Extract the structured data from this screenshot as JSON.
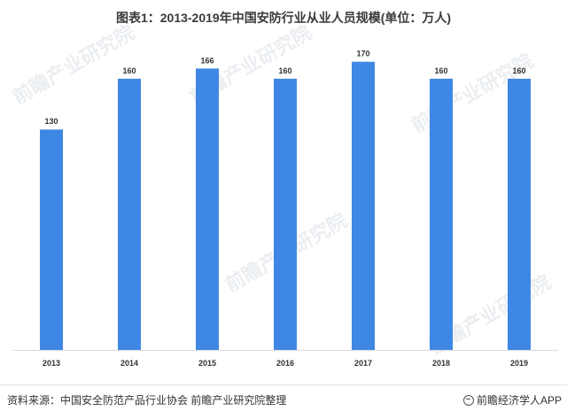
{
  "chart_data": {
    "type": "bar",
    "title": "图表1：2013-2019年中国安防行业从业人员规模(单位：万人)",
    "categories": [
      "2013",
      "2014",
      "2015",
      "2016",
      "2017",
      "2018",
      "2019"
    ],
    "values": [
      130,
      160,
      166,
      160,
      170,
      160,
      160
    ],
    "data_labels": [
      "130",
      "160",
      "166",
      "160",
      "170",
      "160",
      "160"
    ],
    "xlabel": "",
    "ylabel": "",
    "ylim": [
      0,
      185
    ],
    "grid": false,
    "legend": "none",
    "bar_color": "#3f87e4"
  },
  "footer": {
    "source": "资料来源：中国安全防范产品行业协会 前瞻产业研究院整理",
    "brand": "前瞻经济学人APP",
    "brand_icon": "qianzhan-logo-icon"
  },
  "watermark": "前瞻产业研究院"
}
